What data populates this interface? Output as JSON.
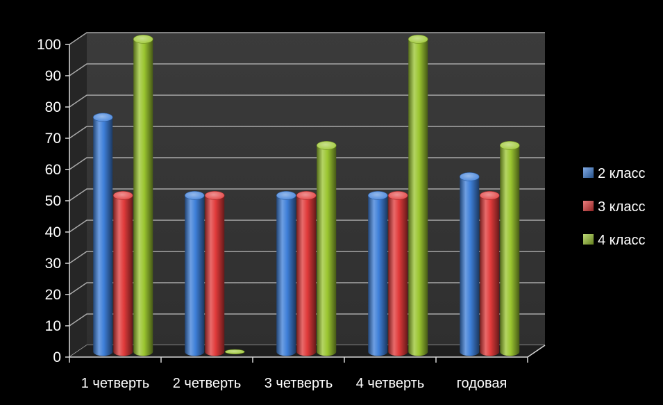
{
  "chart_data": {
    "type": "bar",
    "title": "",
    "xlabel": "",
    "ylabel": "",
    "categories": [
      "1 четверть",
      "2 четверть",
      "3 четверть",
      "4 четверть",
      "годовая"
    ],
    "series": [
      {
        "name": "2 класс",
        "values": [
          75,
          50,
          50,
          50,
          56
        ],
        "color": "#3e7fd8"
      },
      {
        "name": "3 класс",
        "values": [
          50,
          50,
          50,
          50,
          50
        ],
        "color": "#e03a3a"
      },
      {
        "name": "4 класс",
        "values": [
          100,
          0,
          66,
          100,
          66
        ],
        "color": "#9bc630"
      }
    ],
    "ylim": [
      0,
      100
    ],
    "yticks": [
      "0",
      "10",
      "20",
      "30",
      "40",
      "50",
      "60",
      "70",
      "80",
      "90",
      "100"
    ],
    "grid": true,
    "legend_position": "right",
    "style": "3d-cylinder",
    "background": "#000000",
    "plot_wall": "#3a3a3a",
    "text_color": "#ffffff"
  }
}
